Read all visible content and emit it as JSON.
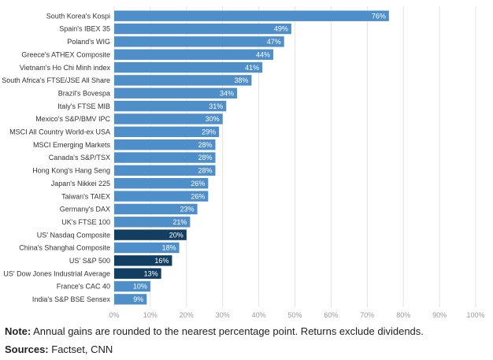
{
  "chart_data": {
    "type": "bar",
    "orientation": "horizontal",
    "title": "",
    "xlabel": "",
    "ylabel": "",
    "xlim": [
      0,
      100
    ],
    "x_ticks": [
      "0%",
      "10%",
      "20%",
      "30%",
      "40%",
      "50%",
      "60%",
      "70%",
      "80%",
      "90%",
      "100%"
    ],
    "grid": true,
    "value_suffix": "%",
    "colors": {
      "default": "#4f8fc9",
      "highlight": "#123e62",
      "grid": "#e3e3e3",
      "label": "#ffffff"
    },
    "categories": [
      "South Korea's Kospi",
      "Spain's IBEX 35",
      "Poland's WIG",
      "Greece's ATHEX Composite",
      "Vietnam's Ho Chi Minh index",
      "South Africa's FTSE/JSE All Share",
      "Brazil's Bovespa",
      "Italy's FTSE MIB",
      "Mexico's S&P/BMV IPC",
      "MSCI All Country World-ex USA",
      "MSCI Emerging Markets",
      "Canada's S&P/TSX",
      "Hong Kong's Hang Seng",
      "Japan's Nikkei 225",
      "Taiwan's TAIEX",
      "Germany's DAX",
      "UK's FTSE 100",
      "US' Nasdaq Composite",
      "China's Shanghai Composite",
      "US' S&P 500",
      "US' Dow Jones Industrial Average",
      "France's CAC 40",
      "India's S&P BSE Sensex"
    ],
    "values": [
      76,
      49,
      47,
      44,
      41,
      38,
      34,
      31,
      30,
      29,
      28,
      28,
      28,
      26,
      26,
      23,
      21,
      20,
      18,
      16,
      13,
      10,
      9
    ],
    "highlighted": [
      false,
      false,
      false,
      false,
      false,
      false,
      false,
      false,
      false,
      false,
      false,
      false,
      false,
      false,
      false,
      false,
      false,
      true,
      false,
      true,
      true,
      false,
      false
    ]
  },
  "footer": {
    "note_label": "Note:",
    "note_text": " Annual gains are rounded to the nearest percentage point. Returns exclude dividends.",
    "sources_label": "Sources:",
    "sources_text": " Factset, CNN"
  }
}
